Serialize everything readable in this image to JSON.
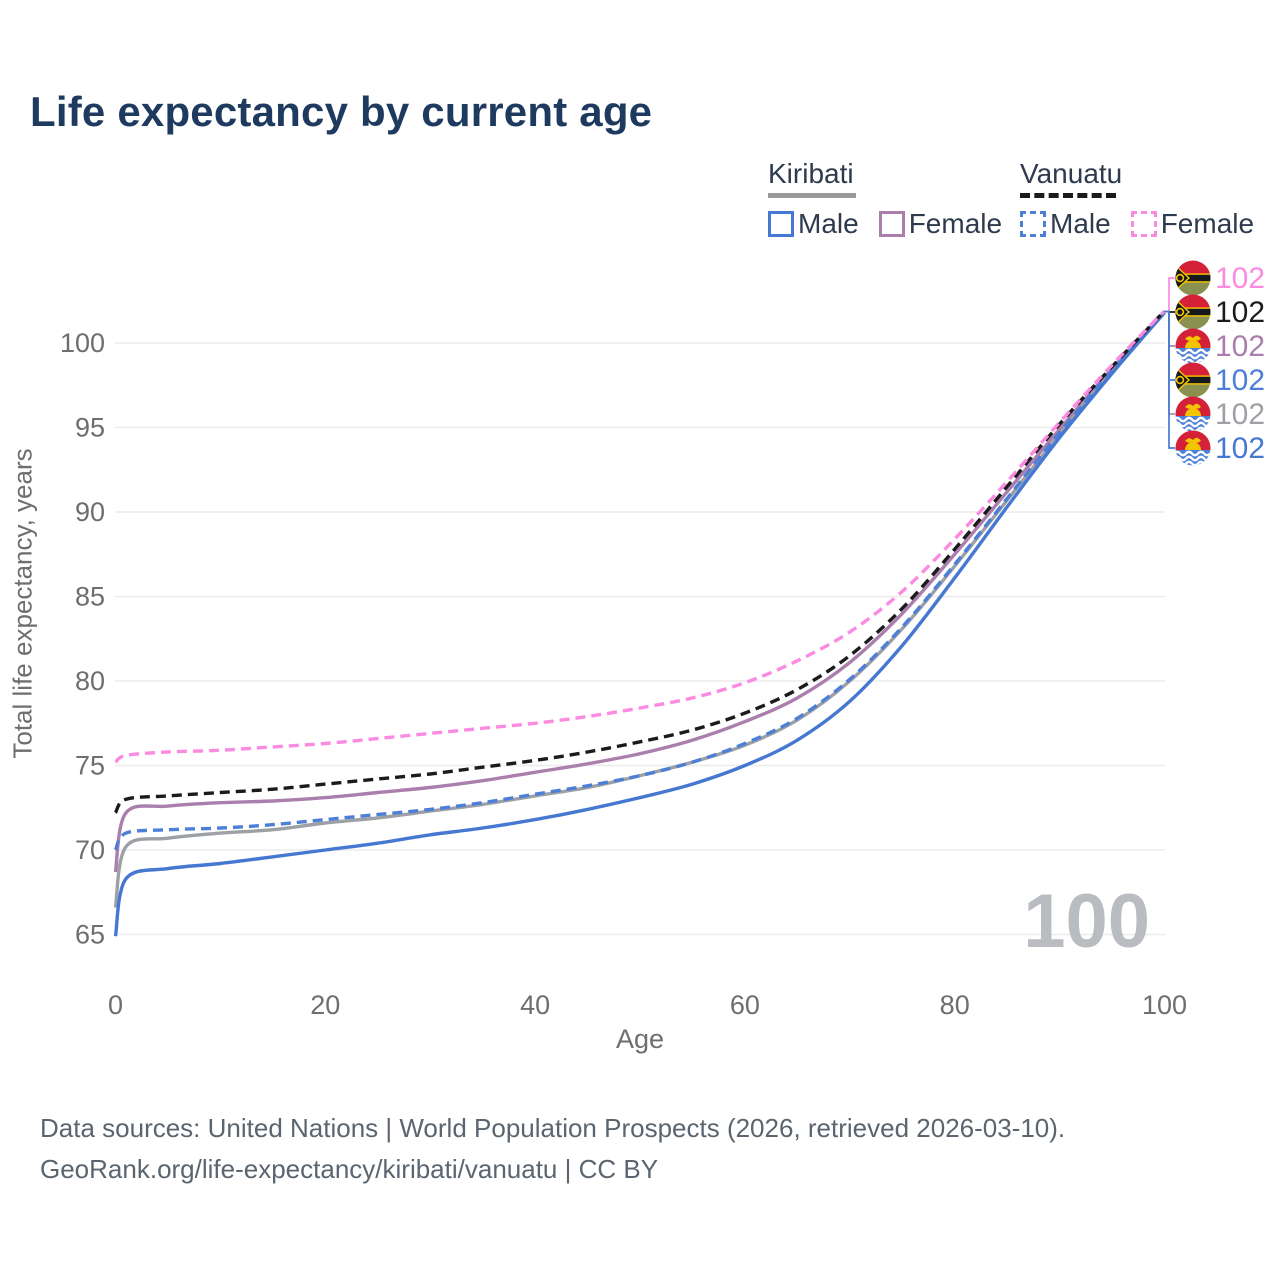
{
  "title": "Life expectancy by current age",
  "legend": {
    "groups": [
      {
        "country": "Kiribati",
        "underline_style": "solid",
        "underline_color": "#9a9a9a",
        "items": [
          {
            "label": "Male",
            "color": "#4678d2",
            "dash": "solid"
          },
          {
            "label": "Female",
            "color": "#ab7fad",
            "dash": "solid"
          }
        ]
      },
      {
        "country": "Vanuatu",
        "underline_style": "dashed",
        "underline_color": "#1b1b1b",
        "items": [
          {
            "label": "Male",
            "color": "#4e7fd7",
            "dash": "dashed"
          },
          {
            "label": "Female",
            "color": "#fb8ae1",
            "dash": "dashed"
          }
        ]
      }
    ]
  },
  "chart_data": {
    "type": "line",
    "title": "Life expectancy by current age",
    "xlabel": "Age",
    "ylabel": "Total life expectancy, years",
    "xlim": [
      0,
      100
    ],
    "ylim": [
      63,
      103
    ],
    "x_ticks": [
      0,
      20,
      40,
      60,
      80,
      100
    ],
    "y_ticks": [
      65,
      70,
      75,
      80,
      85,
      90,
      95,
      100
    ],
    "grid": "horizontal-only",
    "legend_position": "top-right",
    "age_counter": "100",
    "ages": [
      0,
      1,
      5,
      10,
      15,
      20,
      25,
      30,
      35,
      40,
      45,
      50,
      55,
      60,
      65,
      70,
      75,
      80,
      85,
      90,
      95,
      100
    ],
    "series": [
      {
        "name": "Vanuatu Female",
        "country": "Vanuatu",
        "sex": "Female",
        "color": "#fb8ae1",
        "dash": "dashed",
        "flag": "vanuatu",
        "end_label": "102",
        "values": [
          75.2,
          75.6,
          75.8,
          75.9,
          76.1,
          76.3,
          76.6,
          76.9,
          77.2,
          77.5,
          77.9,
          78.4,
          79.0,
          79.9,
          81.2,
          82.9,
          85.3,
          88.4,
          91.8,
          95.3,
          98.7,
          101.9
        ]
      },
      {
        "name": "Vanuatu",
        "country": "Vanuatu",
        "sex": "Both",
        "color": "#1b1b1b",
        "dash": "dashed",
        "flag": "vanuatu",
        "end_label": "102",
        "values": [
          72.2,
          73.0,
          73.2,
          73.4,
          73.6,
          73.9,
          74.2,
          74.5,
          74.9,
          75.3,
          75.8,
          76.4,
          77.1,
          78.1,
          79.5,
          81.5,
          84.3,
          87.8,
          91.5,
          95.2,
          98.6,
          101.9
        ]
      },
      {
        "name": "Kiribati Female",
        "country": "Kiribati",
        "sex": "Female",
        "color": "#ab7fad",
        "dash": "solid",
        "flag": "kiribati",
        "end_label": "102",
        "values": [
          68.7,
          72.2,
          72.6,
          72.8,
          72.9,
          73.1,
          73.4,
          73.7,
          74.1,
          74.6,
          75.1,
          75.7,
          76.5,
          77.6,
          79.0,
          81.1,
          84.0,
          87.5,
          91.2,
          94.9,
          98.5,
          101.8
        ]
      },
      {
        "name": "Vanuatu Male",
        "country": "Vanuatu",
        "sex": "Male",
        "color": "#4e7fd7",
        "dash": "dashed",
        "flag": "vanuatu",
        "end_label": "102",
        "values": [
          70.0,
          71.0,
          71.2,
          71.3,
          71.5,
          71.8,
          72.1,
          72.4,
          72.8,
          73.3,
          73.8,
          74.4,
          75.2,
          76.3,
          77.8,
          80.1,
          83.2,
          86.9,
          90.8,
          94.7,
          98.4,
          101.8
        ]
      },
      {
        "name": "Kiribati",
        "country": "Kiribati",
        "sex": "Both",
        "color": "#9da1a6",
        "dash": "solid",
        "flag": "kiribati",
        "end_label": "102",
        "values": [
          66.6,
          70.2,
          70.7,
          71.0,
          71.2,
          71.6,
          71.9,
          72.3,
          72.7,
          73.2,
          73.7,
          74.4,
          75.2,
          76.2,
          77.7,
          80.0,
          83.1,
          86.8,
          90.7,
          94.6,
          98.4,
          101.8
        ]
      },
      {
        "name": "Kiribati Male",
        "country": "Kiribati",
        "sex": "Male",
        "color": "#4678d2",
        "dash": "solid",
        "flag": "kiribati",
        "end_label": "102",
        "values": [
          64.9,
          68.3,
          68.9,
          69.2,
          69.6,
          70.0,
          70.4,
          70.9,
          71.3,
          71.8,
          72.4,
          73.1,
          73.9,
          75.0,
          76.5,
          78.8,
          82.1,
          86.1,
          90.3,
          94.4,
          98.2,
          101.8
        ]
      }
    ],
    "colors": {
      "grid": "#ebebeb",
      "tick_text": "#6e6e6e",
      "watermark": "#b9bcc1",
      "flag_red": "#d42138",
      "flag_gold": "#f2c500",
      "flag_olive": "#8a9150",
      "flag_blue": "#4f81d8",
      "flag_black": "#15181c"
    }
  },
  "footer": {
    "line1": "Data sources: United Nations | World Population Prospects (2026, retrieved 2026-03-10).",
    "line2": "GeoRank.org/life-expectancy/kiribati/vanuatu | CC BY"
  }
}
